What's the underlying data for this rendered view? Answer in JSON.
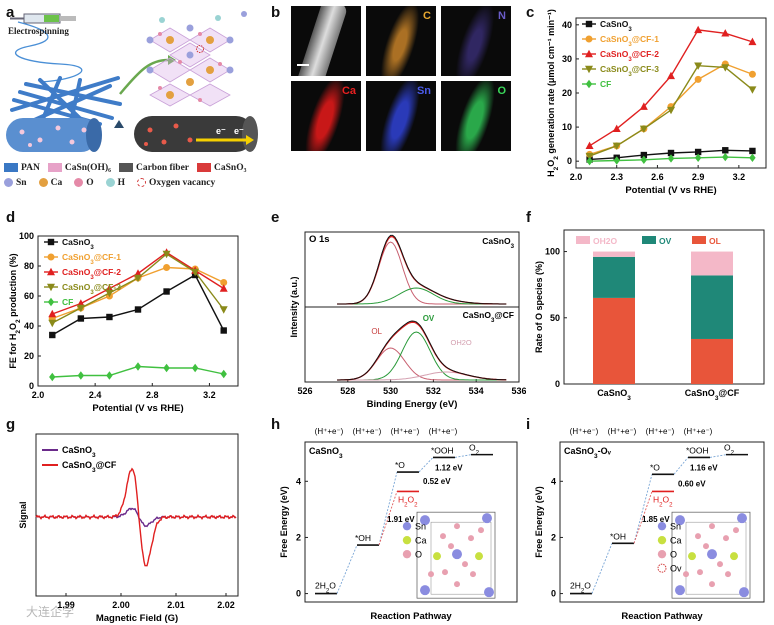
{
  "panel_labels": [
    "a",
    "b",
    "c",
    "d",
    "e",
    "f",
    "g",
    "h",
    "i"
  ],
  "panel_a": {
    "electrospinning": "Electrospinning",
    "legend": [
      {
        "label": "PAN",
        "color": "#3a78c4",
        "kind": "square"
      },
      {
        "label": "CaSn(OH)₆",
        "color": "#e7a2c8",
        "kind": "square"
      },
      {
        "label": "Carbon fiber",
        "color": "#555555",
        "kind": "square"
      },
      {
        "label": "CaSnO₃",
        "color": "#d93a3a",
        "kind": "square"
      },
      {
        "label": "Sn",
        "color": "#9aa0dc",
        "kind": "dot"
      },
      {
        "label": "Ca",
        "color": "#e3a040",
        "kind": "dot"
      },
      {
        "label": "O",
        "color": "#e58aa8",
        "kind": "dot"
      },
      {
        "label": "H",
        "color": "#9ad3d3",
        "kind": "dot"
      },
      {
        "label": "Oxygen vacancy",
        "color": "#d23a3a",
        "kind": "ring"
      }
    ],
    "electrons": [
      "e⁻",
      "e⁻"
    ]
  },
  "panel_b": {
    "tiles": [
      {
        "label": "",
        "color": "#bbbbbb"
      },
      {
        "label": "C",
        "color": "#d38a2a"
      },
      {
        "label": "N",
        "color": "#5a4ca8"
      },
      {
        "label": "Ca",
        "color": "#d82020"
      },
      {
        "label": "Sn",
        "color": "#2a3ab8"
      },
      {
        "label": "O",
        "color": "#2aa84a"
      }
    ]
  },
  "chart_data": [
    {
      "id": "c",
      "type": "line",
      "xlabel": "Potential (V vs RHE)",
      "ylabel": "H₂O₂ generation rate (μmol cm⁻¹ min⁻¹)",
      "xlim": [
        2.0,
        3.4
      ],
      "ylim": [
        -2,
        42
      ],
      "xticks": [
        2.0,
        2.3,
        2.6,
        2.9,
        3.2
      ],
      "yticks": [
        0,
        10,
        20,
        30,
        40
      ],
      "x": [
        2.1,
        2.3,
        2.5,
        2.7,
        2.9,
        3.1,
        3.3
      ],
      "series": [
        {
          "name": "CaSnO3",
          "color": "#111111",
          "marker": "square",
          "values": [
            0.5,
            1.0,
            1.8,
            2.4,
            2.7,
            3.2,
            3.0
          ]
        },
        {
          "name": "CaSnO3@CF-1",
          "color": "#f0a030",
          "marker": "circle",
          "values": [
            2.0,
            4.5,
            9.5,
            16.0,
            24.0,
            28.5,
            25.5
          ]
        },
        {
          "name": "CaSnO3@CF-2",
          "color": "#e02020",
          "marker": "triangle",
          "values": [
            4.5,
            9.5,
            16.0,
            25.0,
            38.5,
            37.5,
            35.0
          ]
        },
        {
          "name": "CaSnO3@CF-3",
          "color": "#8a8a1a",
          "marker": "triangle-down",
          "values": [
            1.5,
            4.5,
            9.5,
            15.0,
            28.0,
            27.5,
            21.0
          ]
        },
        {
          "name": "CF",
          "color": "#40c040",
          "marker": "diamond",
          "values": [
            0.0,
            0.2,
            0.4,
            0.8,
            1.0,
            1.2,
            1.0
          ]
        }
      ]
    },
    {
      "id": "d",
      "type": "line",
      "xlabel": "Potential (V vs RHE)",
      "ylabel": "FE for H₂O₂ production (%)",
      "xlim": [
        2.0,
        3.4
      ],
      "ylim": [
        0,
        100
      ],
      "xticks": [
        2.0,
        2.4,
        2.8,
        3.2
      ],
      "yticks": [
        0,
        20,
        40,
        60,
        80,
        100
      ],
      "x": [
        2.1,
        2.3,
        2.5,
        2.7,
        2.9,
        3.1,
        3.3
      ],
      "series": [
        {
          "name": "CaSnO3",
          "color": "#111111",
          "marker": "square",
          "values": [
            34,
            45,
            46,
            51,
            63,
            74,
            37
          ]
        },
        {
          "name": "CaSnO3@CF-1",
          "color": "#f0a030",
          "marker": "circle",
          "values": [
            45,
            52,
            60,
            72,
            79,
            78,
            69
          ]
        },
        {
          "name": "CaSnO3@CF-2",
          "color": "#e02020",
          "marker": "triangle",
          "values": [
            48,
            55,
            65,
            75,
            89,
            77,
            65
          ]
        },
        {
          "name": "CaSnO3@CF-3",
          "color": "#8a8a1a",
          "marker": "triangle-down",
          "values": [
            42,
            52,
            62,
            72,
            88,
            76,
            51
          ]
        },
        {
          "name": "CF",
          "color": "#40c040",
          "marker": "diamond",
          "values": [
            6,
            7,
            7,
            13,
            12,
            12,
            8
          ]
        }
      ]
    },
    {
      "id": "e",
      "type": "line",
      "title": "O 1s",
      "xlabel": "Binding Energy (eV)",
      "ylabel": "Intensity (a.u.)",
      "xlim": [
        526,
        536
      ],
      "xticks": [
        526,
        528,
        530,
        532,
        534,
        536
      ],
      "annotations": [
        "CaSnO3",
        "CaSnO3@CF",
        "OL",
        "OV",
        "OH2O"
      ]
    },
    {
      "id": "f",
      "type": "bar",
      "ylabel": "Rate of O species (%)",
      "ylim": [
        0,
        100
      ],
      "yticks": [
        0,
        50,
        100
      ],
      "categories": [
        "CaSnO3",
        "CaSnO3@CF"
      ],
      "series": [
        {
          "name": "OL",
          "color": "#e8553a",
          "values": [
            65,
            34
          ]
        },
        {
          "name": "OV",
          "color": "#1f8878",
          "values": [
            31,
            48
          ]
        },
        {
          "name": "OH2O",
          "color": "#f4b8c8",
          "values": [
            4,
            18
          ]
        }
      ]
    },
    {
      "id": "g",
      "type": "line",
      "xlabel": "Magnetic Field (G)",
      "ylabel": "Signal",
      "xticks": [
        "1.99",
        "2.00",
        "2.01",
        "2.02"
      ],
      "series": [
        {
          "name": "CaSnO3",
          "color": "#6a2a8a"
        },
        {
          "name": "CaSnO3@CF",
          "color": "#e02020"
        }
      ]
    },
    {
      "id": "h",
      "type": "line",
      "title": "CaSnO3",
      "xlabel": "Reaction Pathway",
      "ylabel": "Free Energy (eV)",
      "ylim": [
        -0.3,
        5.4
      ],
      "yticks": [
        0,
        2,
        4
      ],
      "steps": [
        "(H⁺+e⁻)",
        "(H⁺+e⁻)",
        "(H⁺+e⁻)",
        "(H⁺+e⁻)"
      ],
      "states": [
        {
          "label": "2H2O",
          "energy": 0.0
        },
        {
          "label": "*OH",
          "energy": 1.73
        },
        {
          "label": "*O",
          "energy": 4.33
        },
        {
          "label": "*OOH",
          "energy": 4.85
        },
        {
          "label": "O2",
          "energy": 4.95
        }
      ],
      "h2o2_energy": 3.64,
      "gaps": [
        "0.52 eV",
        "1.12 eV",
        "1.91 eV"
      ],
      "atoms": [
        "Sn",
        "Ca",
        "O"
      ]
    },
    {
      "id": "i",
      "type": "line",
      "title": "CaSnO3-Ov",
      "xlabel": "Reaction Pathway",
      "ylabel": "Free Energy (eV)",
      "ylim": [
        -0.3,
        5.4
      ],
      "yticks": [
        0,
        2,
        4
      ],
      "steps": [
        "(H⁺+e⁻)",
        "(H⁺+e⁻)",
        "(H⁺+e⁻)",
        "(H⁺+e⁻)"
      ],
      "states": [
        {
          "label": "2H2O",
          "energy": 0.0
        },
        {
          "label": "*OH",
          "energy": 1.79
        },
        {
          "label": "*O",
          "energy": 4.25
        },
        {
          "label": "*OOH",
          "energy": 4.85
        },
        {
          "label": "O2",
          "energy": 4.95
        }
      ],
      "h2o2_energy": 3.64,
      "gaps": [
        "0.60 eV",
        "1.16 eV",
        "1.85 eV"
      ],
      "atoms": [
        "Sn",
        "Ca",
        "O",
        "Ov"
      ]
    }
  ],
  "watermark": "大连企学"
}
